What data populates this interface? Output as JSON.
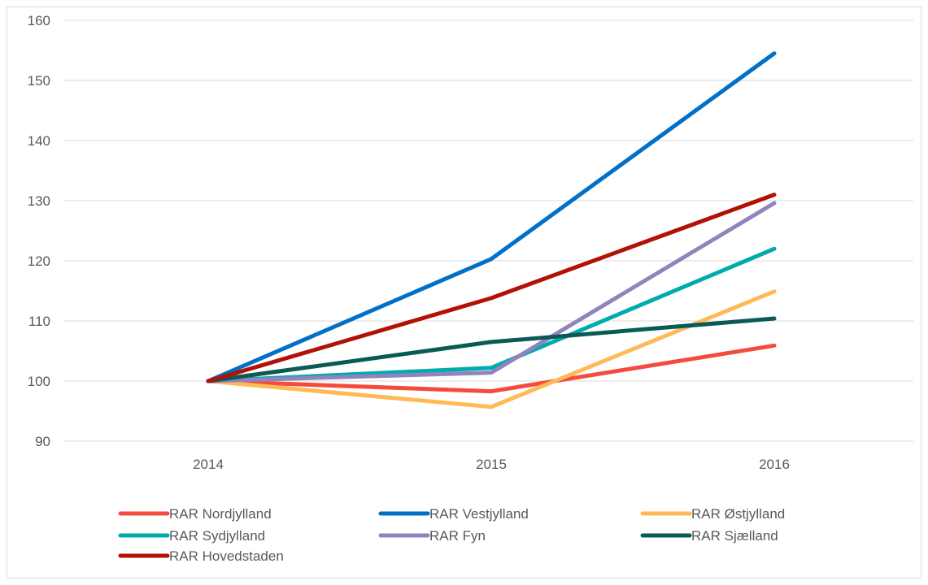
{
  "chart_data": {
    "type": "line",
    "title": "",
    "xlabel": "",
    "ylabel": "",
    "categories": [
      "2014",
      "2015",
      "2016"
    ],
    "ylim": [
      90,
      160
    ],
    "yticks": [
      90,
      100,
      110,
      120,
      130,
      140,
      150,
      160
    ],
    "grid": true,
    "legend_position": "bottom",
    "series": [
      {
        "name": "RAR Nordjylland",
        "color": "#f44b3c",
        "values": [
          100,
          98.3,
          105.9
        ]
      },
      {
        "name": "RAR Vestjylland",
        "color": "#0070c8",
        "values": [
          100,
          120.3,
          154.5
        ]
      },
      {
        "name": "RAR Østjylland",
        "color": "#ffba57",
        "values": [
          100,
          95.7,
          114.9
        ]
      },
      {
        "name": "RAR Sydjylland",
        "color": "#00abab",
        "values": [
          100,
          102.2,
          122.0
        ]
      },
      {
        "name": "RAR Fyn",
        "color": "#8f84bd",
        "values": [
          100,
          101.4,
          129.6
        ]
      },
      {
        "name": "RAR Sjælland",
        "color": "#0a5a55",
        "values": [
          100,
          106.5,
          110.4
        ]
      },
      {
        "name": "RAR Hovedstaden",
        "color": "#b21105",
        "values": [
          100,
          113.8,
          131.0
        ]
      }
    ]
  }
}
